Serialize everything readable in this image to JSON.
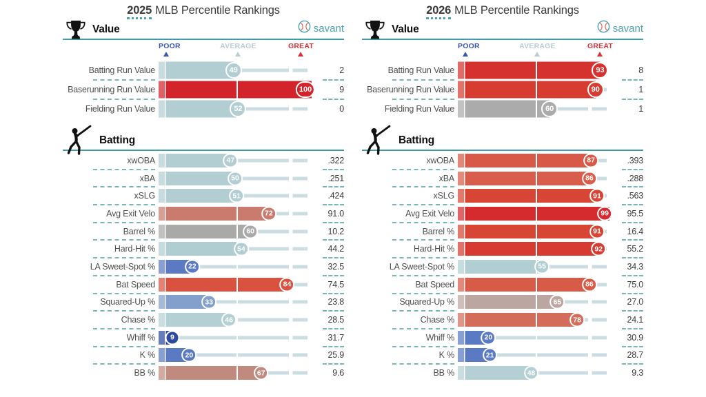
{
  "scale": {
    "poor": "POOR",
    "average": "AVERAGE",
    "great": "GREAT",
    "poor_color": "#3a57a8",
    "average_color": "#b7cdd2",
    "great_color": "#d23439"
  },
  "brand": {
    "label": "savant",
    "icon": "baseball-icon",
    "color": "#4ba3ac",
    "seam_color": "#e0685c"
  },
  "colors": {
    "track": "#cbdde0",
    "section_rule": "#3f9ca6",
    "separator": "#79b6bc"
  },
  "chart_data": [
    {
      "type": "bar",
      "title": "2025 MLB Percentile Rankings",
      "year": "2025",
      "title_rest": "MLB Percentile Rankings",
      "xlim": [
        0,
        100
      ],
      "note": "horizontal percentile bars; badge shows percentile, right column shows raw stat",
      "sections": [
        {
          "name": "Value",
          "icon": "trophy-icon",
          "show_scale": true,
          "rows": [
            {
              "label": "Batting Run Value",
              "pct": 49,
              "value": "2",
              "color": "#b3ced3"
            },
            {
              "label": "Baserunning Run Value",
              "pct": 100,
              "value": "9",
              "color": "#d3242b"
            },
            {
              "label": "Fielding Run Value",
              "pct": 52,
              "value": "0",
              "color": "#b3ced3"
            }
          ]
        },
        {
          "name": "Batting",
          "icon": "batter-icon",
          "show_scale": false,
          "rows": [
            {
              "label": "xwOBA",
              "pct": 47,
              "value": ".322",
              "color": "#b3ced3"
            },
            {
              "label": "xBA",
              "pct": 50,
              "value": ".251",
              "color": "#b3ced3"
            },
            {
              "label": "xSLG",
              "pct": 51,
              "value": ".424",
              "color": "#b3ced3"
            },
            {
              "label": "Avg Exit Velo",
              "pct": 72,
              "value": "91.0",
              "color": "#cb7a6e"
            },
            {
              "label": "Barrel %",
              "pct": 60,
              "value": "10.2",
              "color": "#a9a9a8"
            },
            {
              "label": "Hard-Hit %",
              "pct": 54,
              "value": "44.2",
              "color": "#b0cdd2"
            },
            {
              "label": "LA Sweet-Spot %",
              "pct": 22,
              "value": "32.5",
              "color": "#5b7ac3"
            },
            {
              "label": "Bat Speed",
              "pct": 84,
              "value": "74.5",
              "color": "#d8523f"
            },
            {
              "label": "Squared-Up %",
              "pct": 33,
              "value": "23.8",
              "color": "#82a0cb"
            },
            {
              "label": "Chase %",
              "pct": 46,
              "value": "28.5",
              "color": "#b5d0d4"
            },
            {
              "label": "Whiff %",
              "pct": 9,
              "value": "31.7",
              "color": "#2c4a9e"
            },
            {
              "label": "K %",
              "pct": 20,
              "value": "25.9",
              "color": "#5a7ac3"
            },
            {
              "label": "BB %",
              "pct": 67,
              "value": "9.6",
              "color": "#c08a7f"
            }
          ]
        }
      ]
    },
    {
      "type": "bar",
      "title": "2026 MLB Percentile Rankings",
      "year": "2026",
      "title_rest": "MLB Percentile Rankings",
      "xlim": [
        0,
        100
      ],
      "note": "horizontal percentile bars; badge shows percentile, right column shows raw stat",
      "sections": [
        {
          "name": "Value",
          "icon": "trophy-icon",
          "show_scale": true,
          "rows": [
            {
              "label": "Batting Run Value",
              "pct": 93,
              "value": "8",
              "color": "#d5322f"
            },
            {
              "label": "Baserunning Run Value",
              "pct": 90,
              "value": "1",
              "color": "#d73c31"
            },
            {
              "label": "Fielding Run Value",
              "pct": 60,
              "value": "1",
              "color": "#ababab"
            }
          ]
        },
        {
          "name": "Batting",
          "icon": "batter-icon",
          "show_scale": false,
          "rows": [
            {
              "label": "xwOBA",
              "pct": 87,
              "value": ".393",
              "color": "#d85948"
            },
            {
              "label": "xBA",
              "pct": 86,
              "value": ".288",
              "color": "#d95d4b"
            },
            {
              "label": "xSLG",
              "pct": 91,
              "value": ".563",
              "color": "#d74535"
            },
            {
              "label": "Avg Exit Velo",
              "pct": 99,
              "value": "95.5",
              "color": "#d52a2e"
            },
            {
              "label": "Barrel %",
              "pct": 91,
              "value": "16.4",
              "color": "#d74535"
            },
            {
              "label": "Hard-Hit %",
              "pct": 92,
              "value": "55.2",
              "color": "#d63a30"
            },
            {
              "label": "LA Sweet-Spot %",
              "pct": 55,
              "value": "34.3",
              "color": "#b1ced3"
            },
            {
              "label": "Bat Speed",
              "pct": 86,
              "value": "75.0",
              "color": "#d85b48"
            },
            {
              "label": "Squared-Up %",
              "pct": 65,
              "value": "27.0",
              "color": "#bca6a2"
            },
            {
              "label": "Chase %",
              "pct": 78,
              "value": "24.1",
              "color": "#d36c5a"
            },
            {
              "label": "Whiff %",
              "pct": 20,
              "value": "30.9",
              "color": "#5a7ac3"
            },
            {
              "label": "K %",
              "pct": 21,
              "value": "28.7",
              "color": "#5a7ac3"
            },
            {
              "label": "BB %",
              "pct": 48,
              "value": "9.3",
              "color": "#b5d0d4"
            }
          ]
        }
      ]
    }
  ]
}
